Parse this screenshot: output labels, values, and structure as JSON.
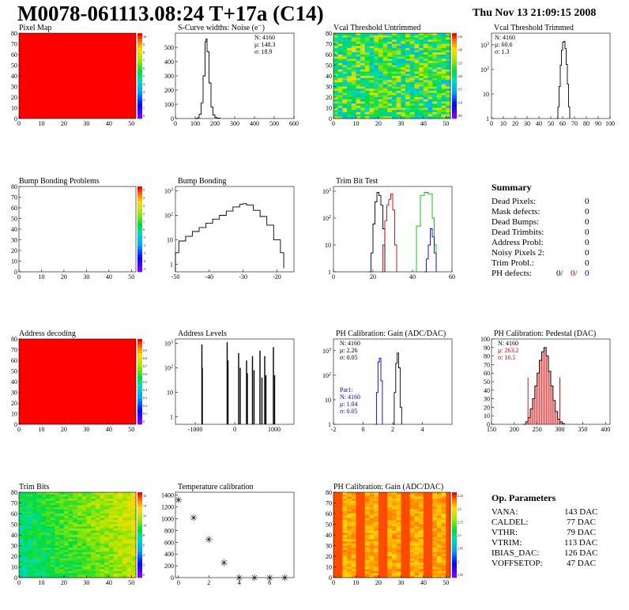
{
  "header": {
    "title": "M0078-061113.08:24 T+17a (C14)",
    "date": "Thu Nov 13 21:09:15 2008"
  },
  "summary": {
    "title": "Summary",
    "rows": [
      {
        "label": "Dead Pixels:",
        "value": "0"
      },
      {
        "label": "Mask defects:",
        "value": "0"
      },
      {
        "label": "Dead Bumps:",
        "value": "0"
      },
      {
        "label": "Dead Trimbits:",
        "value": "0"
      },
      {
        "label": "Address Probl:",
        "value": "0"
      },
      {
        "label": "Noisy Pixels 2:",
        "value": "0"
      },
      {
        "label": "Trim Probl.:",
        "value": "0"
      }
    ],
    "ph_label": "PH defects:",
    "ph_values": [
      "0/",
      "0/",
      "0"
    ],
    "ph_colors": [
      "#000000",
      "#cc0000",
      "#0000cc"
    ]
  },
  "op_parameters": {
    "title": "Op. Parameters",
    "rows": [
      {
        "label": "VANA:",
        "value": "143 DAC"
      },
      {
        "label": "CALDEL:",
        "value": "77 DAC"
      },
      {
        "label": "VTHR:",
        "value": "79 DAC"
      },
      {
        "label": "VTRIM:",
        "value": "113 DAC"
      },
      {
        "label": "IBIAS_DAC:",
        "value": "126 DAC"
      },
      {
        "label": "VOFFSETOP:",
        "value": "47 DAC"
      }
    ]
  },
  "chart_data": [
    {
      "id": "pixel-map",
      "type": "heatmap",
      "title": "Pixel Map",
      "xlim": [
        0,
        52
      ],
      "ylim": [
        0,
        80
      ],
      "xticks": [
        0,
        10,
        20,
        30,
        40,
        50
      ],
      "yticks": [
        0,
        10,
        20,
        30,
        40,
        50,
        60,
        70,
        80
      ],
      "fill": "uniform",
      "fill_color": "#ff0000",
      "zlim": [
        0,
        10
      ],
      "palette_ticks": [
        "10",
        "9",
        "8",
        "7",
        "6",
        "5",
        "4",
        "3",
        "2",
        "1",
        "0"
      ]
    },
    {
      "id": "scurve-noise",
      "type": "histogram",
      "title": "S-Curve widths: Noise (e⁻)",
      "xlim": [
        0,
        600
      ],
      "ylim": [
        0,
        600
      ],
      "log": false,
      "xticks": [
        0,
        100,
        200,
        300,
        400,
        500,
        600
      ],
      "yticks": [
        0,
        100,
        200,
        300,
        400,
        500
      ],
      "stats": [
        "N: 4160",
        "μ: 148.3",
        "σ: 18.9"
      ],
      "series": [
        {
          "color": "#000000",
          "points": [
            [
              100,
              0
            ],
            [
              110,
              5
            ],
            [
              120,
              30
            ],
            [
              130,
              110
            ],
            [
              140,
              300
            ],
            [
              150,
              540
            ],
            [
              155,
              560
            ],
            [
              160,
              470
            ],
            [
              170,
              250
            ],
            [
              180,
              80
            ],
            [
              190,
              25
            ],
            [
              200,
              8
            ],
            [
              210,
              3
            ],
            [
              225,
              0
            ]
          ]
        }
      ]
    },
    {
      "id": "vcal-untrimmed",
      "type": "heatmap",
      "title": "Vcal Threshold Untrimmed",
      "xlim": [
        0,
        52
      ],
      "ylim": [
        0,
        80
      ],
      "xticks": [
        0,
        10,
        20,
        30,
        40,
        50
      ],
      "yticks": [
        0,
        10,
        20,
        30,
        40,
        50,
        60,
        70,
        80
      ],
      "fill": "noise",
      "zlim": [
        100,
        140
      ],
      "palette_ticks": [
        "135",
        "130",
        "125",
        "120",
        "115",
        "110",
        "105"
      ]
    },
    {
      "id": "vcal-trimmed",
      "type": "histogram",
      "title": "Vcal Threshold Trimmed",
      "xlim": [
        0,
        100
      ],
      "ylim": [
        1,
        3000
      ],
      "log": true,
      "xticks": [
        0,
        10,
        20,
        30,
        40,
        50,
        60,
        70,
        80,
        90,
        100
      ],
      "yticks": [
        1,
        10,
        100,
        1000
      ],
      "stats": [
        "N: 4160",
        "μ: 60.6",
        "σ: 1.3"
      ],
      "series": [
        {
          "color": "#000000",
          "points": [
            [
              55,
              1
            ],
            [
              56,
              3
            ],
            [
              57,
              20
            ],
            [
              58,
              150
            ],
            [
              59,
              600
            ],
            [
              60,
              1300
            ],
            [
              61,
              1400
            ],
            [
              62,
              700
            ],
            [
              63,
              160
            ],
            [
              64,
              25
            ],
            [
              65,
              3
            ],
            [
              66,
              1
            ]
          ]
        }
      ]
    },
    {
      "id": "bump-bonding-problems",
      "type": "heatmap",
      "title": "Bump Bonding Problems",
      "xlim": [
        0,
        52
      ],
      "ylim": [
        0,
        80
      ],
      "xticks": [
        0,
        10,
        20,
        30,
        40,
        50
      ],
      "yticks": [
        0,
        10,
        20,
        30,
        40,
        50,
        60,
        70,
        80
      ],
      "fill": "empty",
      "zlim": [
        -5,
        5
      ],
      "palette_ticks": [
        "5",
        "4",
        "3",
        "2",
        "1",
        "0",
        "-1",
        "-2",
        "-3",
        "-4",
        "-5"
      ]
    },
    {
      "id": "bump-bonding",
      "type": "histogram",
      "title": "Bump Bonding",
      "xlim": [
        -50,
        -15
      ],
      "ylim": [
        0.5,
        1500
      ],
      "log": true,
      "xticks": [
        -50,
        -40,
        -30,
        -20
      ],
      "yticks": [
        1,
        10,
        100,
        1000
      ],
      "series": [
        {
          "color": "#000000",
          "points": [
            [
              -50,
              3
            ],
            [
              -49,
              9
            ],
            [
              -47,
              14
            ],
            [
              -45,
              22
            ],
            [
              -43,
              32
            ],
            [
              -41,
              48
            ],
            [
              -39,
              70
            ],
            [
              -37,
              100
            ],
            [
              -35,
              150
            ],
            [
              -33,
              220
            ],
            [
              -31,
              280
            ],
            [
              -30,
              300
            ],
            [
              -29,
              260
            ],
            [
              -27,
              160
            ],
            [
              -25,
              90
            ],
            [
              -23,
              40
            ],
            [
              -21,
              10
            ],
            [
              -19,
              3
            ],
            [
              -18,
              0.7
            ]
          ]
        }
      ]
    },
    {
      "id": "trim-bit-test",
      "type": "histogram",
      "title": "Trim Bit Test",
      "xlim": [
        0,
        60
      ],
      "ylim": [
        1,
        1500
      ],
      "log": true,
      "xticks": [
        0,
        20,
        40,
        60
      ],
      "yticks": [
        1,
        10,
        100,
        1000
      ],
      "series": [
        {
          "color": "#000000",
          "points": [
            [
              18,
              1
            ],
            [
              19,
              5
            ],
            [
              20,
              60
            ],
            [
              21,
              400
            ],
            [
              22,
              900
            ],
            [
              23,
              700
            ],
            [
              24,
              300
            ],
            [
              25,
              40
            ],
            [
              26,
              1
            ]
          ]
        },
        {
          "color": "#cc0000",
          "points": [
            [
              24,
              1
            ],
            [
              25,
              10
            ],
            [
              26,
              80
            ],
            [
              27,
              300
            ],
            [
              28,
              500
            ],
            [
              29,
              800
            ],
            [
              30,
              200
            ],
            [
              31,
              10
            ],
            [
              32,
              1
            ]
          ]
        },
        {
          "color": "#00bb00",
          "points": [
            [
              41,
              1
            ],
            [
              42,
              50
            ],
            [
              44,
              700
            ],
            [
              46,
              900
            ],
            [
              48,
              800
            ],
            [
              50,
              100
            ],
            [
              51,
              10
            ],
            [
              52,
              1
            ]
          ]
        },
        {
          "color": "#0000cc",
          "points": [
            [
              46,
              1
            ],
            [
              47,
              3
            ],
            [
              48,
              10
            ],
            [
              49,
              40
            ],
            [
              50,
              20
            ],
            [
              51,
              5
            ],
            [
              52,
              1
            ]
          ]
        }
      ]
    },
    {
      "id": "address-decoding",
      "type": "heatmap",
      "title": "Address decoding",
      "xlim": [
        0,
        52
      ],
      "ylim": [
        0,
        80
      ],
      "xticks": [
        0,
        10,
        20,
        30,
        40,
        50
      ],
      "yticks": [
        0,
        10,
        20,
        30,
        40,
        50,
        60,
        70,
        80
      ],
      "fill": "uniform",
      "fill_color": "#ff0000",
      "zlim": [
        0,
        1
      ],
      "palette_ticks": [
        "1",
        "0.9",
        "0.8",
        "0.7",
        "0.6",
        "0.5",
        "0.4",
        "0.3",
        "0.2",
        "0.1",
        "0"
      ]
    },
    {
      "id": "address-levels",
      "type": "spikes",
      "title": "Address Levels",
      "xlim": [
        -1500,
        1500
      ],
      "ylim": [
        0.5,
        1500
      ],
      "log": true,
      "xticks": [
        -1000,
        0,
        1000
      ],
      "yticks": [
        1,
        10,
        100,
        1000
      ],
      "spikes": [
        [
          -830,
          900
        ],
        [
          -820,
          100
        ],
        [
          -190,
          1100
        ],
        [
          -170,
          200
        ],
        [
          100,
          400
        ],
        [
          140,
          100
        ],
        [
          300,
          200
        ],
        [
          320,
          60
        ],
        [
          450,
          300
        ],
        [
          490,
          80
        ],
        [
          640,
          500
        ],
        [
          690,
          40
        ],
        [
          760,
          300
        ],
        [
          790,
          50
        ],
        [
          980,
          700
        ],
        [
          1010,
          50
        ]
      ]
    },
    {
      "id": "ph-gain",
      "type": "histogram",
      "title": "PH Calibration: Gain (ADC/DAC)",
      "xlim": [
        -2,
        6
      ],
      "ylim": [
        1,
        3000
      ],
      "log": true,
      "xticks": [
        -2,
        0,
        2,
        4
      ],
      "yticks": [
        1,
        10,
        100,
        1000
      ],
      "stats": [
        "N: 4160",
        "μ: 2.26",
        "σ: 0.05"
      ],
      "stats2_color": "#0000cc",
      "stats2": [
        "Par1:",
        "N: 4160",
        "μ: 1.04",
        "σ: 0.05"
      ],
      "series": [
        {
          "color": "#000000",
          "points": [
            [
              2.0,
              1
            ],
            [
              2.1,
              20
            ],
            [
              2.2,
              300
            ],
            [
              2.3,
              800
            ],
            [
              2.4,
              200
            ],
            [
              2.5,
              5
            ],
            [
              2.6,
              1
            ]
          ]
        },
        {
          "color": "#0000cc",
          "points": [
            [
              0.8,
              1
            ],
            [
              0.9,
              20
            ],
            [
              1.0,
              350
            ],
            [
              1.1,
              500
            ],
            [
              1.2,
              60
            ],
            [
              1.3,
              1
            ]
          ]
        }
      ]
    },
    {
      "id": "ph-pedestal",
      "type": "histogram",
      "title": "PH Calibration: Pedestal (DAC)",
      "xlim": [
        150,
        410
      ],
      "ylim": [
        0,
        100
      ],
      "log": false,
      "xticks": [
        150,
        200,
        250,
        300,
        350,
        400
      ],
      "yticks": [
        0,
        10,
        20,
        30,
        40,
        50,
        60,
        70,
        80,
        90,
        100
      ],
      "stats": [
        "N: 4160",
        "μ: 263.2",
        "σ: 16.5"
      ],
      "stats_colors": [
        "#000000",
        "#cc0000",
        "#cc0000"
      ],
      "cut_lines": [
        230,
        300
      ],
      "series": [
        {
          "color": "#000000",
          "fill": "#cc0000",
          "points": [
            [
              220,
              0
            ],
            [
              225,
              3
            ],
            [
              230,
              8
            ],
            [
              235,
              18
            ],
            [
              240,
              30
            ],
            [
              245,
              45
            ],
            [
              250,
              60
            ],
            [
              255,
              75
            ],
            [
              260,
              85
            ],
            [
              265,
              90
            ],
            [
              270,
              80
            ],
            [
              275,
              62
            ],
            [
              280,
              45
            ],
            [
              285,
              28
            ],
            [
              290,
              15
            ],
            [
              295,
              6
            ],
            [
              300,
              3
            ],
            [
              305,
              1
            ],
            [
              310,
              0
            ]
          ]
        }
      ]
    },
    {
      "id": "trim-bits",
      "type": "heatmap",
      "title": "Trim Bits",
      "xlim": [
        0,
        52
      ],
      "ylim": [
        0,
        80
      ],
      "xticks": [
        0,
        10,
        20,
        30,
        40,
        50
      ],
      "yticks": [
        0,
        10,
        20,
        30,
        40,
        50,
        60,
        70,
        80
      ],
      "fill": "noise2",
      "zlim": [
        0,
        16
      ],
      "palette_ticks": [
        "16",
        "14",
        "12",
        "10",
        "8",
        "6",
        "4",
        "2",
        "0"
      ]
    },
    {
      "id": "temperature-calibration",
      "type": "scatter",
      "title": "Temperature calibration",
      "xlim": [
        -0.2,
        7.6
      ],
      "ylim": [
        0,
        1450
      ],
      "log": false,
      "xticks": [
        0,
        2,
        4,
        6
      ],
      "yticks": [
        0,
        200,
        400,
        600,
        800,
        1000,
        1200,
        1400
      ],
      "marker": "*",
      "points": [
        [
          0,
          1330
        ],
        [
          1,
          1030
        ],
        [
          2,
          660
        ],
        [
          3,
          260
        ],
        [
          4,
          5
        ],
        [
          5,
          5
        ],
        [
          6,
          5
        ],
        [
          7,
          5
        ]
      ]
    },
    {
      "id": "ph-gain-map",
      "type": "heatmap",
      "title": "PH Calibration: Gain (ADC/DAC)",
      "xlim": [
        0,
        52
      ],
      "ylim": [
        0,
        80
      ],
      "xticks": [
        0,
        10,
        20,
        30,
        40,
        50
      ],
      "yticks": [
        0,
        10,
        20,
        30,
        40,
        50,
        60,
        70,
        80
      ],
      "fill": "stripes",
      "zlim": [
        1.9,
        2.3
      ],
      "palette_ticks": [
        "2.25",
        "2.2",
        "2.15",
        "2.1",
        "2.05",
        "2",
        "1.95"
      ]
    }
  ]
}
